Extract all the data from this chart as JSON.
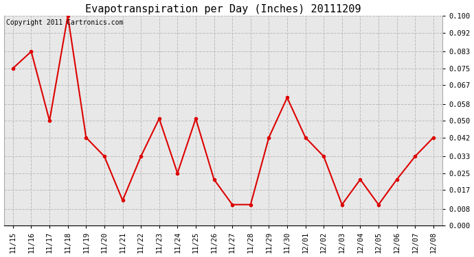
{
  "title": "Evapotranspiration per Day (Inches) 20111209",
  "copyright_text": "Copyright 2011 Cartronics.com",
  "x_labels": [
    "11/15",
    "11/16",
    "11/17",
    "11/18",
    "11/19",
    "11/20",
    "11/21",
    "11/22",
    "11/23",
    "11/24",
    "11/25",
    "11/26",
    "11/27",
    "11/28",
    "11/29",
    "11/30",
    "12/01",
    "12/02",
    "12/03",
    "12/04",
    "12/05",
    "12/06",
    "12/07",
    "12/08"
  ],
  "y_values": [
    0.075,
    0.083,
    0.05,
    0.1,
    0.042,
    0.033,
    0.012,
    0.033,
    0.051,
    0.025,
    0.051,
    0.022,
    0.01,
    0.01,
    0.042,
    0.061,
    0.042,
    0.033,
    0.01,
    0.022,
    0.01,
    0.022,
    0.033,
    0.042
  ],
  "line_color": "#dd0000",
  "marker_color": "#dd0000",
  "plot_bg_color": "#e8e8e8",
  "outer_bg_color": "#ffffff",
  "grid_color": "#bbbbbb",
  "ylim": [
    0.0,
    0.1
  ],
  "yticks": [
    0.0,
    0.008,
    0.017,
    0.025,
    0.033,
    0.042,
    0.05,
    0.058,
    0.067,
    0.075,
    0.083,
    0.092,
    0.1
  ],
  "title_fontsize": 11,
  "copyright_fontsize": 7,
  "tick_fontsize": 7.5,
  "tick_label_fontfamily": "monospace"
}
